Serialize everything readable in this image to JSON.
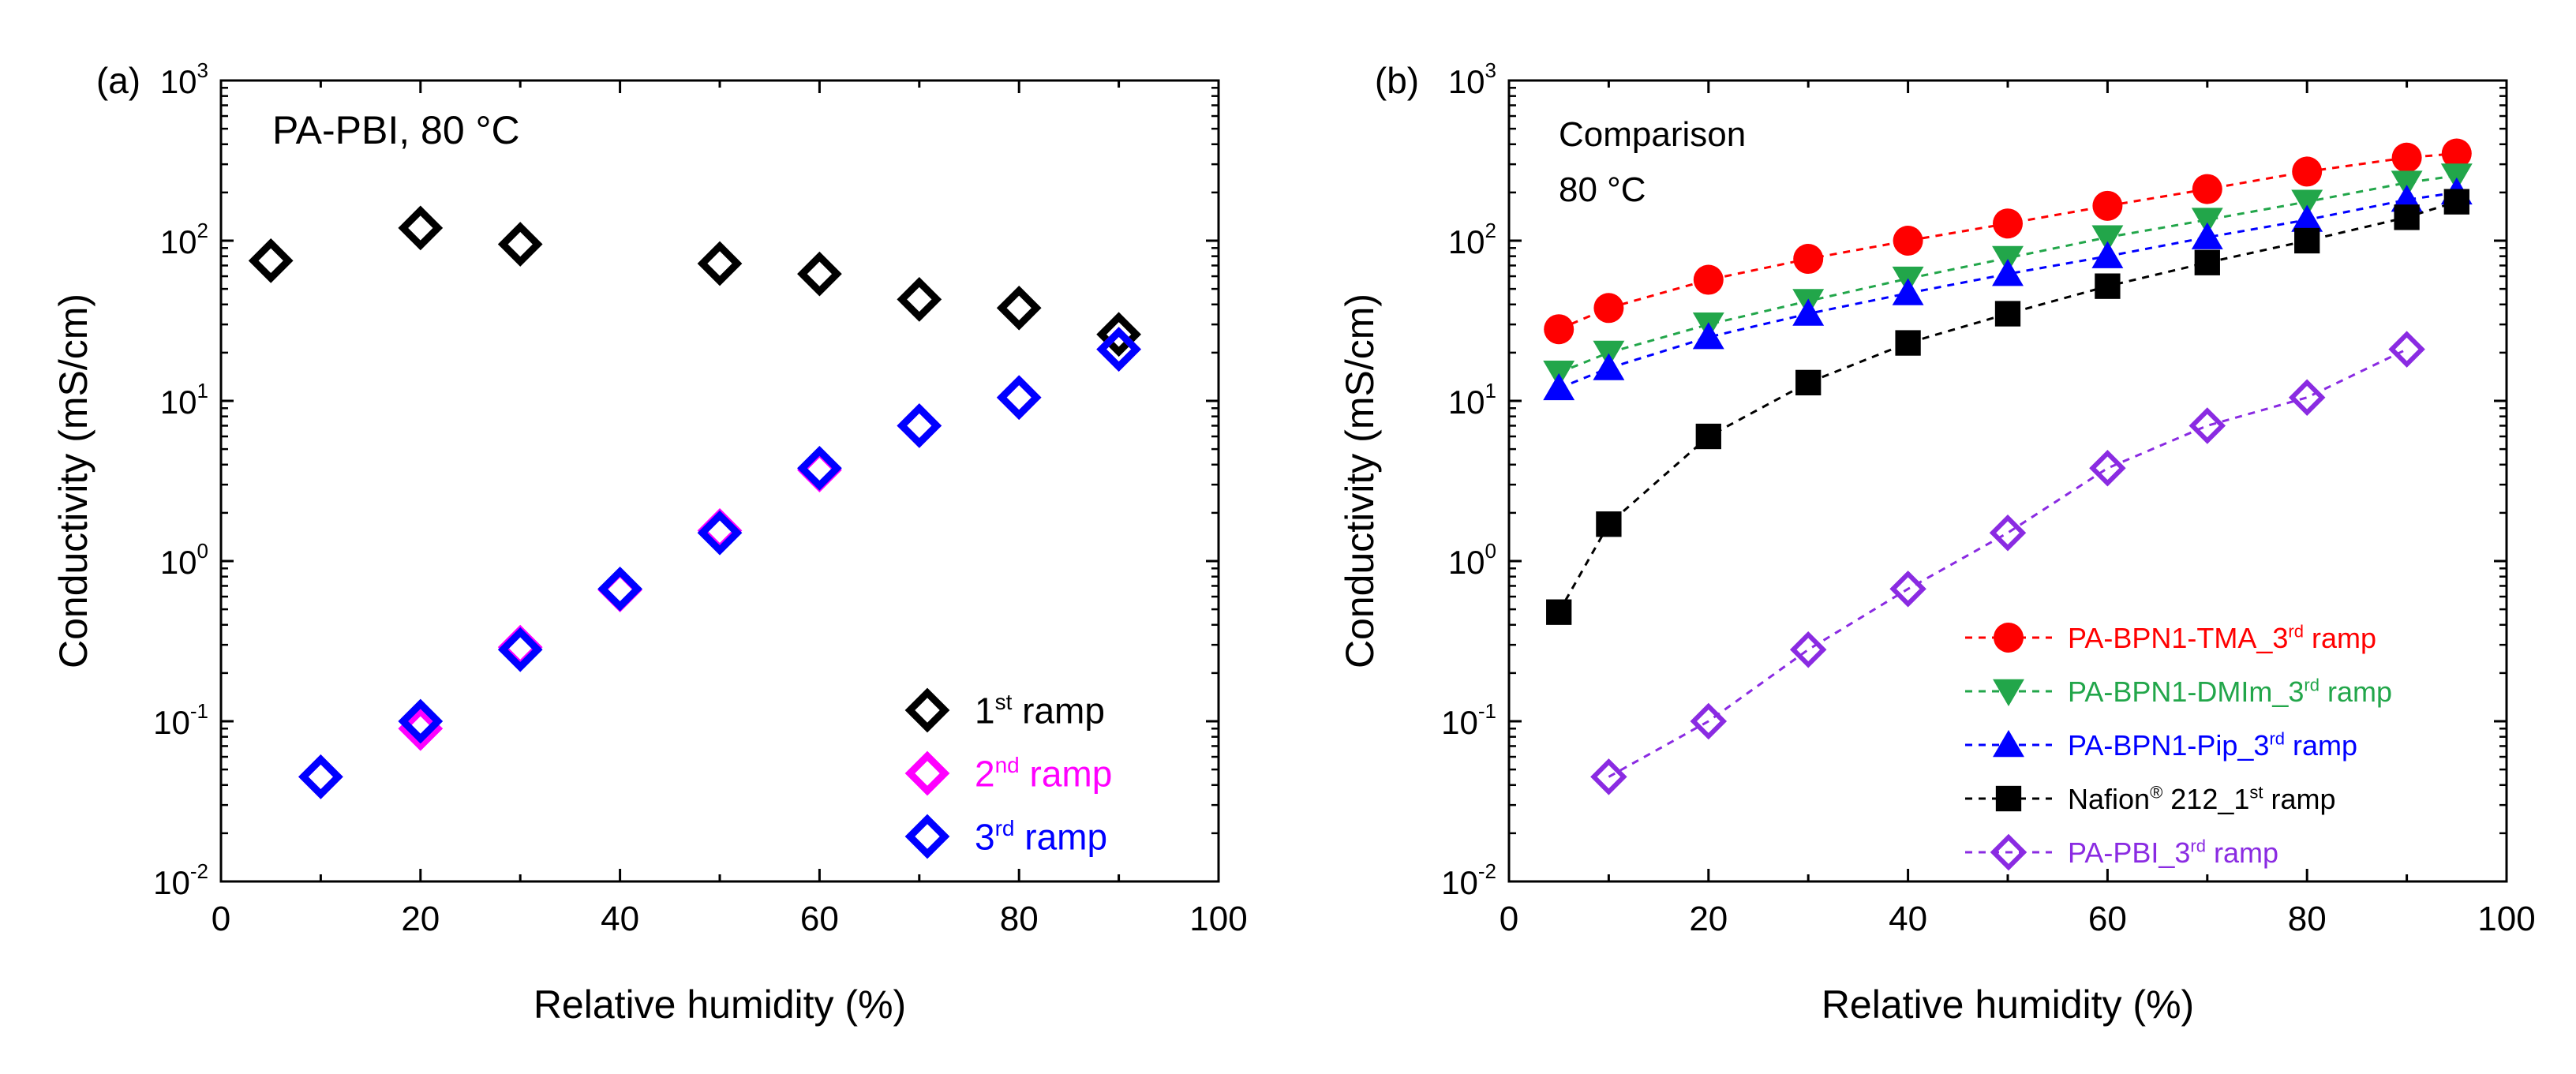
{
  "chart_data": [
    {
      "type": "scatter",
      "panel_label": "(a)",
      "annotation": "PA-PBI, 80 °C",
      "xlabel": "Relative humidity (%)",
      "ylabel": "Conductivity (mS/cm)",
      "xlim": [
        0,
        100
      ],
      "ylim": [
        0.01,
        1000
      ],
      "yscale": "log",
      "x_ticks": [
        0,
        20,
        40,
        60,
        80,
        100
      ],
      "x_tick_labels": [
        "0",
        "20",
        "40",
        "60",
        "80",
        "100"
      ],
      "y_ticks": [
        {
          "value": 0.01,
          "base": "10",
          "exp": "-2"
        },
        {
          "value": 0.1,
          "base": "10",
          "exp": "-1"
        },
        {
          "value": 1,
          "base": "10",
          "exp": "0"
        },
        {
          "value": 10,
          "base": "10",
          "exp": "1"
        },
        {
          "value": 100,
          "base": "10",
          "exp": "2"
        },
        {
          "value": 1000,
          "base": "10",
          "exp": "3"
        }
      ],
      "legend_position": "bottom-right",
      "series": [
        {
          "label_main": "1",
          "label_sup": "st",
          "label_rest": " ramp",
          "color": "#000000",
          "text_color": "#000000",
          "marker": "diamond-open",
          "x": [
            5,
            20,
            30,
            50,
            60,
            70,
            80,
            90
          ],
          "y": [
            75,
            120,
            95,
            72,
            62,
            43,
            38,
            26
          ]
        },
        {
          "label_main": "2",
          "label_sup": "nd",
          "label_rest": " ramp",
          "color": "#ff00ff",
          "text_color": "#ff00ff",
          "marker": "diamond-open",
          "x": [
            10,
            20,
            30,
            40,
            50,
            60,
            70,
            80,
            90
          ],
          "y": [
            0.045,
            0.09,
            0.29,
            0.66,
            1.55,
            3.7,
            7.0,
            10.5,
            21
          ]
        },
        {
          "label_main": "3",
          "label_sup": "rd",
          "label_rest": " ramp",
          "color": "#0000ff",
          "text_color": "#0000ff",
          "marker": "diamond-open",
          "x": [
            10,
            20,
            30,
            40,
            50,
            60,
            70,
            80,
            90
          ],
          "y": [
            0.045,
            0.1,
            0.28,
            0.67,
            1.5,
            3.8,
            7.0,
            10.5,
            21
          ]
        }
      ]
    },
    {
      "type": "line",
      "panel_label": "(b)",
      "annotation_lines": [
        "Comparison",
        "80 °C"
      ],
      "xlabel": "Relative humidity (%)",
      "ylabel": "Conductivity (mS/cm)",
      "xlim": [
        0,
        100
      ],
      "ylim": [
        0.01,
        1000
      ],
      "yscale": "log",
      "x_ticks": [
        0,
        20,
        40,
        60,
        80,
        100
      ],
      "x_tick_labels": [
        "0",
        "20",
        "40",
        "60",
        "80",
        "100"
      ],
      "y_ticks": [
        {
          "value": 0.01,
          "base": "10",
          "exp": "-2"
        },
        {
          "value": 0.1,
          "base": "10",
          "exp": "-1"
        },
        {
          "value": 1,
          "base": "10",
          "exp": "0"
        },
        {
          "value": 10,
          "base": "10",
          "exp": "1"
        },
        {
          "value": 100,
          "base": "10",
          "exp": "2"
        },
        {
          "value": 1000,
          "base": "10",
          "exp": "3"
        }
      ],
      "legend_position": "bottom-right",
      "series": [
        {
          "label_main": "PA-BPN1-TMA_3",
          "label_sup": "rd",
          "label_rest": " ramp",
          "color": "#ff0000",
          "text_color": "#ff0000",
          "marker": "circle",
          "x": [
            5,
            10,
            20,
            30,
            40,
            50,
            60,
            70,
            80,
            90,
            95
          ],
          "y": [
            28,
            38,
            57,
            77,
            100,
            128,
            165,
            210,
            270,
            330,
            350
          ]
        },
        {
          "label_main": "PA-BPN1-DMIm_3",
          "label_sup": "rd",
          "label_rest": " ramp",
          "color": "#22a64a",
          "text_color": "#22a64a",
          "marker": "triangle-down",
          "x": [
            5,
            10,
            20,
            30,
            40,
            50,
            60,
            70,
            80,
            90,
            95
          ],
          "y": [
            15,
            20,
            30,
            42,
            58,
            78,
            105,
            135,
            175,
            230,
            255
          ]
        },
        {
          "label_main": "PA-BPN1-Pip_3",
          "label_sup": "rd",
          "label_rest": " ramp",
          "color": "#0000ff",
          "text_color": "#0000ff",
          "marker": "triangle-up",
          "x": [
            5,
            10,
            20,
            30,
            40,
            50,
            60,
            70,
            80,
            90,
            95
          ],
          "y": [
            12,
            16,
            25,
            35,
            47,
            62,
            80,
            105,
            135,
            180,
            200
          ]
        },
        {
          "label_main": "Nafion",
          "label_reg": "®",
          "label_rest": " 212_",
          "label_main2": "1",
          "label_sup": "st",
          "label_rest2": " ramp",
          "color": "#000000",
          "text_color": "#000000",
          "marker": "square",
          "x": [
            5,
            10,
            20,
            30,
            40,
            50,
            60,
            70,
            80,
            90,
            95
          ],
          "y": [
            0.48,
            1.7,
            6.0,
            13,
            23,
            35,
            52,
            73,
            100,
            140,
            175
          ]
        },
        {
          "label_main": "PA-PBI_3",
          "label_sup": "rd",
          "label_rest": " ramp",
          "color": "#8a2be2",
          "text_color": "#8a2be2",
          "marker": "diamond-open",
          "x": [
            10,
            20,
            30,
            40,
            50,
            60,
            70,
            80,
            90
          ],
          "y": [
            0.045,
            0.1,
            0.28,
            0.67,
            1.5,
            3.8,
            7.0,
            10.5,
            21
          ]
        }
      ]
    }
  ]
}
